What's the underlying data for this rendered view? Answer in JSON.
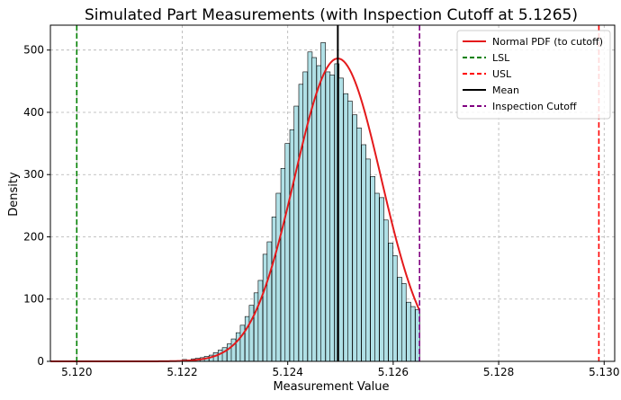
{
  "chart_data": {
    "type": "bar",
    "title": "Simulated Part Measurements (with Inspection Cutoff at 5.1265)",
    "xlabel": "Measurement Value",
    "ylabel": "Density",
    "xlim": [
      5.1195,
      5.1302
    ],
    "ylim": [
      0,
      540
    ],
    "x_ticks": [
      5.12,
      5.122,
      5.124,
      5.126,
      5.128,
      5.13
    ],
    "x_tick_labels": [
      "5.120",
      "5.122",
      "5.124",
      "5.126",
      "5.128",
      "5.130"
    ],
    "y_ticks": [
      0,
      100,
      200,
      300,
      400,
      500
    ],
    "y_tick_labels": [
      "0",
      "100",
      "200",
      "300",
      "400",
      "500"
    ],
    "grid": true,
    "legend_position": "top-right",
    "histogram": {
      "bin_width": 8.46e-05,
      "bin_starts": [
        5.122,
        5.12208,
        5.12217,
        5.12225,
        5.12234,
        5.12242,
        5.12251,
        5.12259,
        5.12268,
        5.12276,
        5.12285,
        5.12293,
        5.12302,
        5.1231,
        5.12319,
        5.12327,
        5.12336,
        5.12344,
        5.12353,
        5.12361,
        5.1237,
        5.12378,
        5.12387,
        5.12395,
        5.12404,
        5.12412,
        5.12421,
        5.12429,
        5.12438,
        5.12446,
        5.12455,
        5.12463,
        5.12472,
        5.1248,
        5.12489,
        5.12497,
        5.12506,
        5.12514,
        5.12523,
        5.12531,
        5.1254,
        5.12548,
        5.12557,
        5.12565,
        5.12574,
        5.12582,
        5.12591,
        5.12599,
        5.12608,
        5.12616,
        5.12625,
        5.12633,
        5.12642
      ],
      "densities": [
        3,
        2,
        4,
        5,
        6,
        8,
        10,
        14,
        18,
        22,
        28,
        36,
        46,
        58,
        72,
        90,
        110,
        130,
        172,
        192,
        232,
        270,
        310,
        350,
        372,
        410,
        445,
        465,
        497,
        488,
        475,
        512,
        465,
        460,
        478,
        455,
        430,
        418,
        396,
        375,
        348,
        325,
        297,
        270,
        263,
        227,
        190,
        170,
        135,
        125,
        95,
        88,
        83
      ]
    },
    "pdf": {
      "mean": 5.12495,
      "std": 0.00082,
      "x_start": 5.1195,
      "x_end": 5.1265
    },
    "lines": {
      "lsl": 5.12,
      "usl": 5.1299,
      "mean": 5.12495,
      "cutoff": 5.1265
    },
    "legend": [
      {
        "label": "Normal PDF (to cutoff)",
        "color": "#e41a1c",
        "style": "solid"
      },
      {
        "label": "LSL",
        "color": "#008000",
        "style": "dashed"
      },
      {
        "label": "USL",
        "color": "#ff0000",
        "style": "dashed"
      },
      {
        "label": "Mean",
        "color": "#000000",
        "style": "solid"
      },
      {
        "label": "Inspection Cutoff",
        "color": "#800080",
        "style": "dashed"
      }
    ],
    "colors": {
      "bar_fill": "#b0e0e6",
      "bar_edge": "#000000",
      "pdf": "#e41a1c",
      "lsl": "#008000",
      "usl": "#ff0000",
      "mean": "#000000",
      "cutoff": "#800080"
    }
  }
}
